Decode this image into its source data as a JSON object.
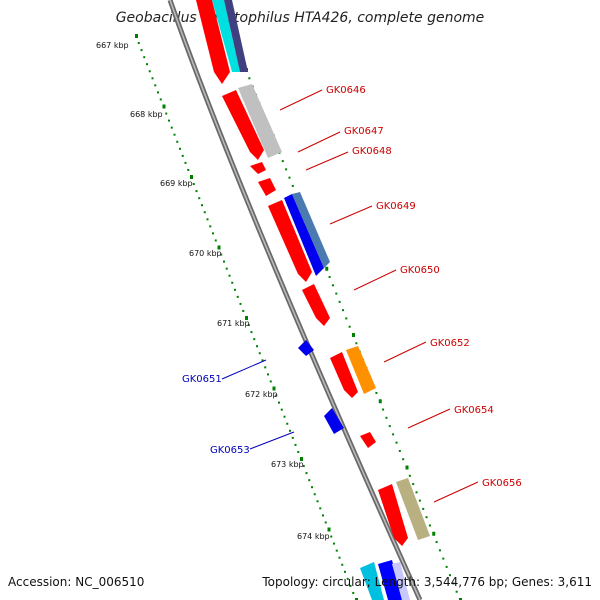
{
  "title": "Geobacillus kaustophilus HTA426, complete genome",
  "footer": {
    "accession": "Accession: NC_006510",
    "summary": "Topology: circular; Length: 3,544,776 bp; Genes: 3,611"
  },
  "ruler": {
    "tick_labels": [
      "667 kbp",
      "668 kbp",
      "669 kbp",
      "670 kbp",
      "671 kbp",
      "672 kbp",
      "673 kbp",
      "674 kbp"
    ]
  },
  "gene_labels": [
    {
      "name": "GK0646",
      "color": "#cc0000"
    },
    {
      "name": "GK0647",
      "color": "#cc0000"
    },
    {
      "name": "GK0648",
      "color": "#cc0000"
    },
    {
      "name": "GK0649",
      "color": "#cc0000"
    },
    {
      "name": "GK0650",
      "color": "#cc0000"
    },
    {
      "name": "GK0652",
      "color": "#cc0000"
    },
    {
      "name": "GK0654",
      "color": "#cc0000"
    },
    {
      "name": "GK0656",
      "color": "#cc0000"
    },
    {
      "name": "GK0651",
      "color": "#0000bb"
    },
    {
      "name": "GK0653",
      "color": "#0000bb"
    }
  ],
  "colors": {
    "cds_red": "#ff0000",
    "cds_blue": "#0000ff",
    "backbone": "#808080",
    "tick_green": "#008000"
  }
}
